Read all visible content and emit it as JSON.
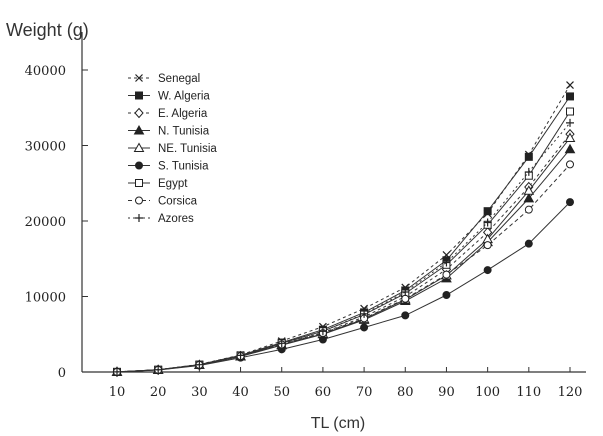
{
  "chart_data": {
    "type": "line",
    "ylabel": "Weight (g)",
    "xlabel": "TL (cm)",
    "xlim": [
      10,
      120
    ],
    "ylim": [
      0,
      40000
    ],
    "x_ticks": [
      "10",
      "20",
      "30",
      "40",
      "50",
      "60",
      "70",
      "80",
      "90",
      "100",
      "110",
      "120"
    ],
    "y_ticks": [
      "0",
      "10000",
      "20000",
      "30000",
      "40000"
    ],
    "grid": false,
    "legend_position": "top-left",
    "x": [
      10,
      20,
      30,
      40,
      50,
      60,
      70,
      80,
      90,
      100,
      110,
      120
    ],
    "series": [
      {
        "name": "Senegal",
        "marker": "x",
        "filled": false,
        "dash": "3,3",
        "values": [
          15,
          310,
          1000,
          2250,
          4100,
          6000,
          8400,
          11200,
          15500,
          21000,
          28800,
          38000
        ]
      },
      {
        "name": "W. Algeria",
        "marker": "square",
        "filled": true,
        "dash": "",
        "values": [
          14,
          300,
          980,
          2200,
          3900,
          5600,
          7900,
          10800,
          14800,
          21300,
          28500,
          36500
        ]
      },
      {
        "name": "E. Algeria",
        "marker": "diamond",
        "filled": false,
        "dash": "3,3",
        "values": [
          13,
          290,
          940,
          2100,
          3700,
          5200,
          7300,
          10000,
          13600,
          18500,
          24500,
          31500
        ]
      },
      {
        "name": "N. Tunisia",
        "marker": "triangle",
        "filled": true,
        "dash": "",
        "values": [
          12,
          280,
          920,
          2050,
          3550,
          5000,
          6900,
          9400,
          12400,
          17200,
          23000,
          29500
        ]
      },
      {
        "name": "NE. Tunisia",
        "marker": "triangle",
        "filled": false,
        "dash": "",
        "values": [
          12,
          285,
          930,
          2080,
          3600,
          5050,
          7000,
          9600,
          12800,
          17600,
          24000,
          31000
        ]
      },
      {
        "name": "S. Tunisia",
        "marker": "circle",
        "filled": true,
        "dash": "",
        "values": [
          11,
          260,
          860,
          1900,
          3000,
          4300,
          5900,
          7500,
          10200,
          13500,
          17000,
          22500
        ]
      },
      {
        "name": "Egypt",
        "marker": "square",
        "filled": false,
        "dash": "",
        "values": [
          13,
          295,
          960,
          2150,
          3800,
          5400,
          7600,
          10400,
          14200,
          19500,
          26000,
          34500
        ]
      },
      {
        "name": "Corsica",
        "marker": "circle",
        "filled": false,
        "dash": "4,3",
        "values": [
          13,
          285,
          950,
          2100,
          3650,
          5150,
          7100,
          9700,
          12900,
          16800,
          21500,
          27500
        ]
      },
      {
        "name": "Azores",
        "marker": "plus",
        "filled": false,
        "dash": "2,3",
        "values": [
          14,
          300,
          970,
          2200,
          3800,
          5400,
          7700,
          10600,
          14500,
          19800,
          26500,
          33000
        ]
      }
    ]
  }
}
